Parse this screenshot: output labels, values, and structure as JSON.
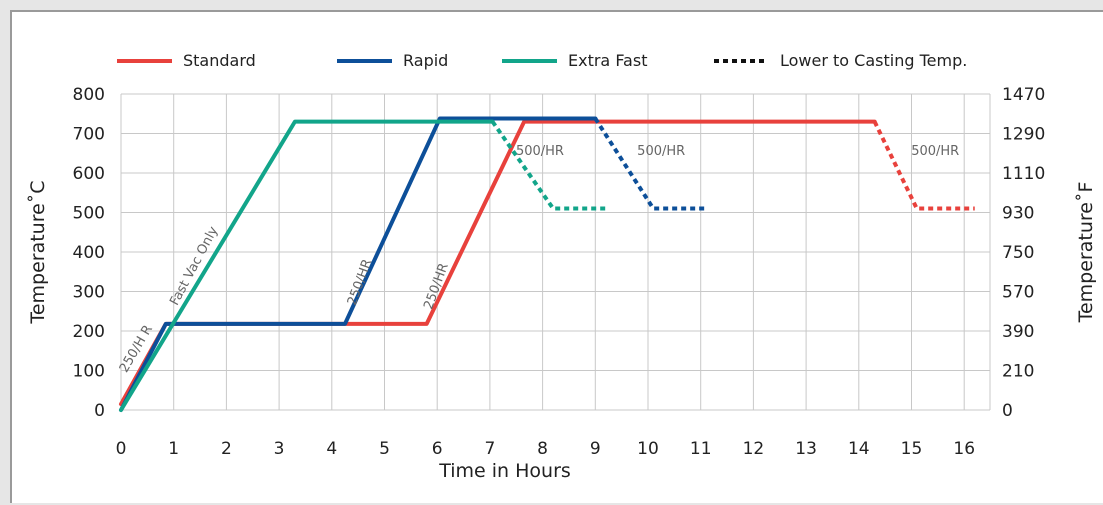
{
  "chart_data": {
    "type": "line",
    "xlabel": "Time in Hours",
    "ylabel": "Temperature˚C",
    "y2label": "Temperature˚F",
    "xlim": [
      0,
      16.5
    ],
    "ylim": [
      0,
      800
    ],
    "x_ticks": [
      "0",
      "1",
      "2",
      "3",
      "4",
      "5",
      "6",
      "7",
      "8",
      "9",
      "10",
      "11",
      "12",
      "13",
      "14",
      "15",
      "16"
    ],
    "y_ticks": [
      "0",
      "100",
      "200",
      "300",
      "400",
      "500",
      "600",
      "700",
      "800"
    ],
    "y2_ticks": [
      "0",
      "210",
      "390",
      "570",
      "750",
      "930",
      "1110",
      "1290",
      "1470"
    ],
    "grid": true,
    "legend_position": "top",
    "legend": [
      {
        "name": "Standard",
        "color": "#e8413c",
        "dashed": false
      },
      {
        "name": "Rapid",
        "color": "#0d4f99",
        "dashed": false
      },
      {
        "name": "Extra Fast",
        "color": "#12a58a",
        "dashed": false
      },
      {
        "name": "Lower to Casting Temp.",
        "color": "#111111",
        "dashed": true
      }
    ],
    "series": [
      {
        "id": "standard",
        "color": "#e8413c",
        "points": [
          [
            0,
            15
          ],
          [
            0.85,
            218
          ],
          [
            5.8,
            218
          ],
          [
            7.65,
            730
          ],
          [
            14.3,
            730
          ]
        ],
        "lowering": [
          [
            14.3,
            730
          ],
          [
            15.1,
            510
          ],
          [
            16.2,
            510
          ]
        ]
      },
      {
        "id": "rapid",
        "color": "#0d4f99",
        "points": [
          [
            0,
            0
          ],
          [
            0.85,
            218
          ],
          [
            4.25,
            218
          ],
          [
            6.05,
            738
          ],
          [
            9.0,
            738
          ]
        ],
        "lowering": [
          [
            9.0,
            738
          ],
          [
            10.1,
            510
          ],
          [
            11.1,
            510
          ]
        ]
      },
      {
        "id": "extra_fast",
        "color": "#12a58a",
        "points": [
          [
            0,
            0
          ],
          [
            3.3,
            730
          ],
          [
            7.05,
            730
          ]
        ],
        "lowering": [
          [
            7.05,
            730
          ],
          [
            8.2,
            510
          ],
          [
            9.25,
            510
          ]
        ]
      }
    ],
    "annotations": [
      {
        "text": "250/H R",
        "x": 0.35,
        "y": 150,
        "rotate": -60
      },
      {
        "text": "Fast Vac Only",
        "x": 1.45,
        "y": 360,
        "rotate": -62
      },
      {
        "text": "250/HR",
        "x": 4.6,
        "y": 320,
        "rotate": -70
      },
      {
        "text": "250/HR",
        "x": 6.05,
        "y": 310,
        "rotate": -70
      },
      {
        "text": "500/HR",
        "x": 7.95,
        "y": 645,
        "rotate": 0
      },
      {
        "text": "500/HR",
        "x": 10.25,
        "y": 645,
        "rotate": 0
      },
      {
        "text": "500/HR",
        "x": 15.45,
        "y": 645,
        "rotate": 0
      }
    ]
  }
}
